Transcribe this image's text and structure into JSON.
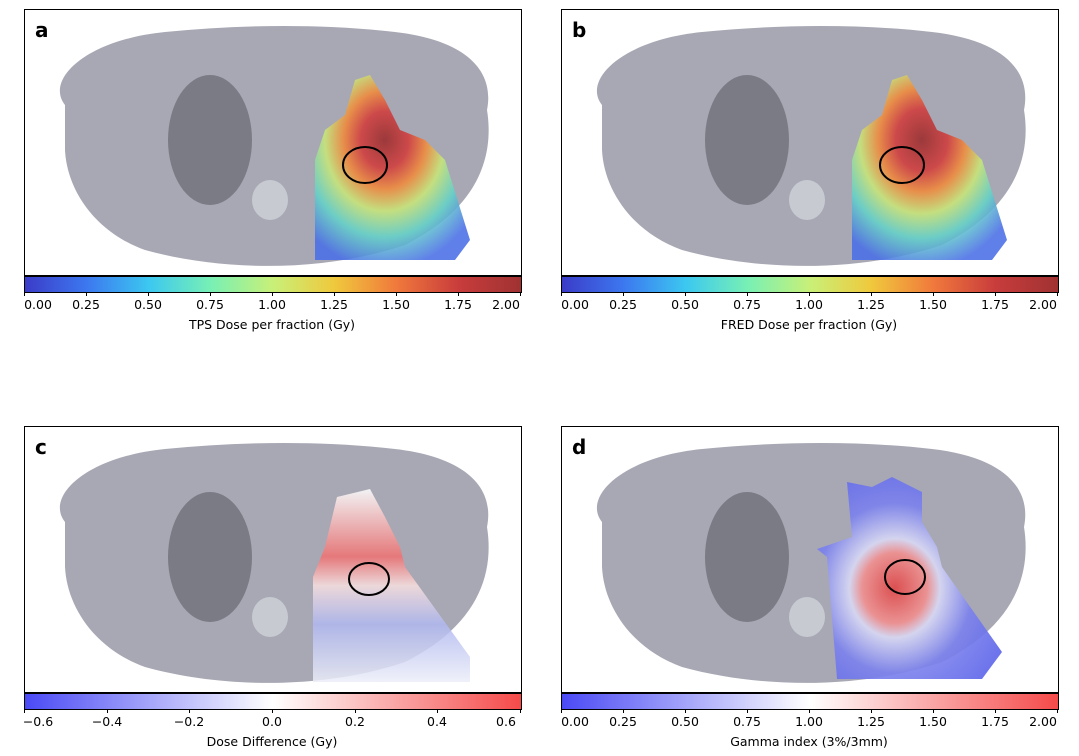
{
  "chart_data": [
    {
      "type": "heatmap",
      "panel_letter": "a",
      "description_label": "TPS Dose per fraction (Gy)",
      "colormap": "jet",
      "colorbar": {
        "min": 0.0,
        "max": 2.0,
        "ticks": [
          "0.00",
          "0.25",
          "0.50",
          "0.75",
          "1.00",
          "1.25",
          "1.50",
          "1.75",
          "2.00"
        ]
      },
      "colors": [
        "#3b3cc8",
        "#3c78f0",
        "#3cc8f0",
        "#78f0b4",
        "#c8f078",
        "#f0c83c",
        "#f0783c",
        "#c83c3c",
        "#a03232"
      ]
    },
    {
      "type": "heatmap",
      "panel_letter": "b",
      "description_label": "FRED Dose per fraction (Gy)",
      "colormap": "jet",
      "colorbar": {
        "min": 0.0,
        "max": 2.0,
        "ticks": [
          "0.00",
          "0.25",
          "0.50",
          "0.75",
          "1.00",
          "1.25",
          "1.50",
          "1.75",
          "2.00"
        ]
      },
      "colors": [
        "#3b3cc8",
        "#3c78f0",
        "#3cc8f0",
        "#78f0b4",
        "#c8f078",
        "#f0c83c",
        "#f0783c",
        "#c83c3c",
        "#a03232"
      ]
    },
    {
      "type": "heatmap",
      "panel_letter": "c",
      "description_label": "Dose Difference (Gy)",
      "colormap": "bwr",
      "colorbar": {
        "min": -0.6,
        "max": 0.6,
        "ticks": [
          "−0.6",
          "−0.4",
          "−0.2",
          "0.0",
          "0.2",
          "0.4",
          "0.6"
        ]
      },
      "colors": [
        "#4a4af5",
        "#ffffff",
        "#f54a4a"
      ]
    },
    {
      "type": "heatmap",
      "panel_letter": "d",
      "description_label": "Gamma index (3%/3mm)",
      "colormap": "bwr",
      "colorbar": {
        "min": 0.0,
        "max": 2.0,
        "ticks": [
          "0.00",
          "0.25",
          "0.50",
          "0.75",
          "1.00",
          "1.25",
          "1.50",
          "1.75",
          "2.00"
        ]
      },
      "colors": [
        "#4a4af5",
        "#ffffff",
        "#f54a4a"
      ]
    }
  ]
}
